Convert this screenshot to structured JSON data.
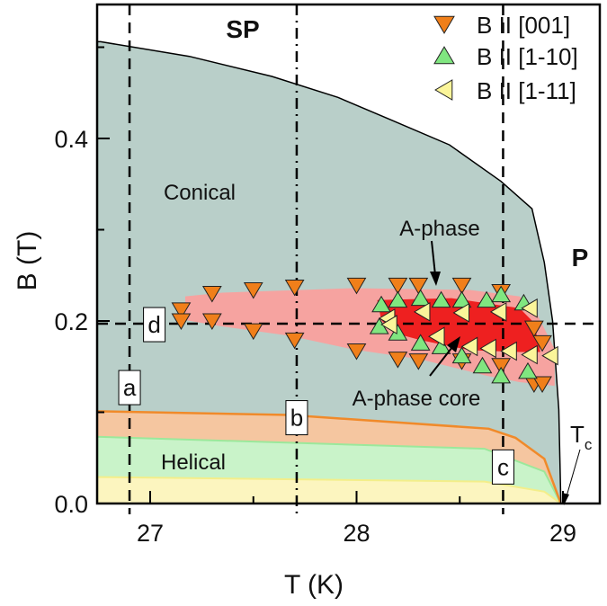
{
  "chart_data": {
    "type": "area",
    "xlabel": "T (K)",
    "ylabel": "B (T)",
    "xlim": [
      26.74,
      29.18
    ],
    "ylim": [
      0,
      0.546
    ],
    "x_ticks": [
      {
        "value": 27,
        "label": "27"
      },
      {
        "value": 28,
        "label": "28"
      },
      {
        "value": 29,
        "label": "29"
      }
    ],
    "x_minor_ticks": [
      27.5,
      28.5
    ],
    "y_ticks": [
      {
        "value": 0.0,
        "label": "0.0"
      },
      {
        "value": 0.2,
        "label": "0.2"
      },
      {
        "value": 0.4,
        "label": "0.4"
      }
    ],
    "y_minor_ticks": [
      0.1,
      0.3,
      0.5
    ],
    "grid": false,
    "legend_placement": "top-right",
    "colors": {
      "conical": "#b9cfc9",
      "a_phase": "#f6a3a0",
      "a_phase_core": "#ee2020",
      "helical_orange_band": "#f5c6a0",
      "helical_orange_line": "#f08a2a",
      "helical_green_band": "#c9f3c9",
      "helical_green_line": "#9be89b",
      "helical_yellow_band": "#fcf5bf",
      "helical_yellow_line": "#f3ee8a",
      "marker_001": "#f07f1a",
      "marker_1m10": "#80e680",
      "marker_1m11": "#fbf59a"
    },
    "regions": {
      "conical_boundary": [
        [
          26.76,
          0.506
        ],
        [
          27.19,
          0.49
        ],
        [
          27.59,
          0.468
        ],
        [
          27.91,
          0.445
        ],
        [
          28.15,
          0.422
        ],
        [
          28.45,
          0.393
        ],
        [
          28.7,
          0.353
        ],
        [
          28.85,
          0.323
        ],
        [
          28.91,
          0.264
        ],
        [
          28.95,
          0.2
        ],
        [
          28.98,
          0.103
        ],
        [
          28.99,
          0.0
        ]
      ],
      "helical_orange": [
        [
          26.76,
          0.101
        ],
        [
          27.67,
          0.097
        ],
        [
          28.64,
          0.082
        ],
        [
          28.77,
          0.072
        ],
        [
          28.91,
          0.049
        ],
        [
          28.99,
          0.0
        ]
      ],
      "helical_green": [
        [
          26.76,
          0.073
        ],
        [
          28.62,
          0.06
        ],
        [
          28.91,
          0.035
        ],
        [
          28.99,
          0.0
        ]
      ],
      "helical_yellow": [
        [
          26.76,
          0.029
        ],
        [
          28.62,
          0.024
        ],
        [
          28.91,
          0.013
        ],
        [
          28.99,
          0.0
        ]
      ],
      "a_phase": [
        [
          27.17,
          0.227
        ],
        [
          27.35,
          0.231
        ],
        [
          27.98,
          0.236
        ],
        [
          28.55,
          0.234
        ],
        [
          28.79,
          0.227
        ],
        [
          28.88,
          0.205
        ],
        [
          28.96,
          0.169
        ],
        [
          28.96,
          0.129
        ],
        [
          28.79,
          0.133
        ],
        [
          28.63,
          0.14
        ],
        [
          28.31,
          0.158
        ],
        [
          27.98,
          0.169
        ],
        [
          27.67,
          0.184
        ],
        [
          27.35,
          0.194
        ],
        [
          27.17,
          0.201
        ]
      ],
      "a_phase_core": [
        [
          28.1,
          0.223
        ],
        [
          28.46,
          0.225
        ],
        [
          28.79,
          0.214
        ],
        [
          28.86,
          0.198
        ],
        [
          28.89,
          0.166
        ],
        [
          28.79,
          0.166
        ],
        [
          28.55,
          0.168
        ],
        [
          28.31,
          0.179
        ],
        [
          28.18,
          0.187
        ],
        [
          28.12,
          0.201
        ]
      ]
    },
    "cuts": [
      {
        "label": "a",
        "orientation": "vertical",
        "T": 26.9,
        "style": "dashed"
      },
      {
        "label": "b",
        "orientation": "vertical",
        "T": 27.71,
        "style": "dash-dot"
      },
      {
        "label": "c",
        "orientation": "vertical",
        "T": 28.71,
        "style": "dashed"
      },
      {
        "label": "d",
        "orientation": "horizontal",
        "B": 0.197,
        "style": "dashed"
      }
    ],
    "series": [
      {
        "name": "B II [001]",
        "marker": "triangle-down",
        "points": [
          [
            27.15,
            0.212
          ],
          [
            27.15,
            0.2
          ],
          [
            27.3,
            0.23
          ],
          [
            27.3,
            0.2
          ],
          [
            27.5,
            0.234
          ],
          [
            27.5,
            0.189
          ],
          [
            27.7,
            0.237
          ],
          [
            27.7,
            0.179
          ],
          [
            28.0,
            0.239
          ],
          [
            28.0,
            0.167
          ],
          [
            28.2,
            0.239
          ],
          [
            28.2,
            0.158
          ],
          [
            28.3,
            0.239
          ],
          [
            28.3,
            0.156
          ],
          [
            28.51,
            0.239
          ],
          [
            28.51,
            0.156
          ],
          [
            28.7,
            0.232
          ],
          [
            28.7,
            0.151
          ],
          [
            28.86,
            0.192
          ],
          [
            28.9,
            0.176
          ],
          [
            28.86,
            0.131
          ],
          [
            28.9,
            0.131
          ]
        ]
      },
      {
        "name": "B II [1-10]",
        "marker": "triangle-up",
        "points": [
          [
            28.12,
            0.218
          ],
          [
            28.11,
            0.194
          ],
          [
            28.2,
            0.223
          ],
          [
            28.2,
            0.187
          ],
          [
            28.31,
            0.225
          ],
          [
            28.31,
            0.176
          ],
          [
            28.41,
            0.223
          ],
          [
            28.41,
            0.172
          ],
          [
            28.51,
            0.223
          ],
          [
            28.51,
            0.162
          ],
          [
            28.63,
            0.223
          ],
          [
            28.61,
            0.151
          ],
          [
            28.7,
            0.229
          ],
          [
            28.7,
            0.14
          ],
          [
            28.81,
            0.22
          ],
          [
            28.83,
            0.145
          ]
        ]
      },
      {
        "name": "B II [1-11]",
        "marker": "triangle-left",
        "points": [
          [
            28.15,
            0.203
          ],
          [
            28.16,
            0.196
          ],
          [
            28.32,
            0.21
          ],
          [
            28.51,
            0.209
          ],
          [
            28.69,
            0.21
          ],
          [
            28.84,
            0.214
          ],
          [
            28.39,
            0.183
          ],
          [
            28.55,
            0.172
          ],
          [
            28.64,
            0.17
          ],
          [
            28.74,
            0.167
          ],
          [
            28.84,
            0.163
          ],
          [
            28.94,
            0.162
          ]
        ]
      }
    ],
    "annotations": {
      "sp": "SP",
      "p": "P",
      "conical": "Conical",
      "helical": "Helical",
      "a_phase": "A-phase",
      "a_phase_core": "A-phase core",
      "tc_main": "T",
      "tc_sub": "c"
    }
  }
}
